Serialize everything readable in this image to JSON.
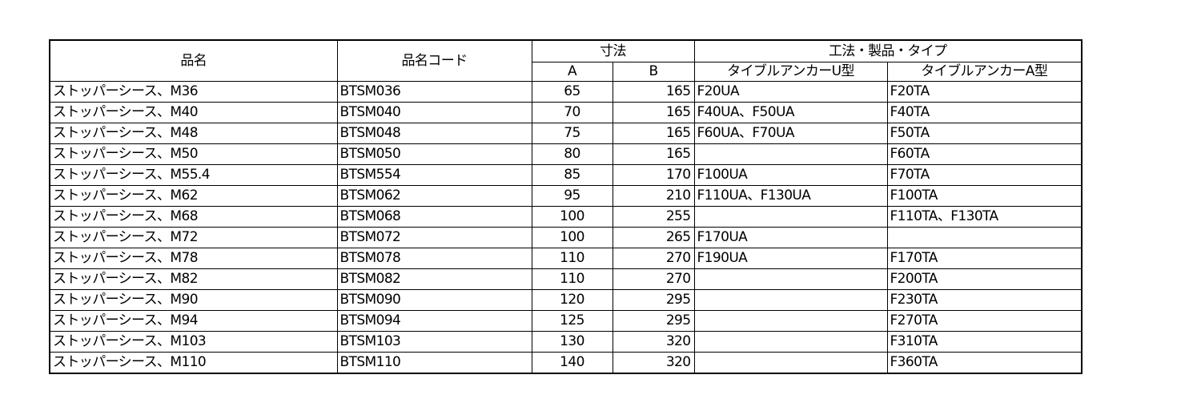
{
  "headers": {
    "name": "品名",
    "code": "品名コード",
    "dimensions": "寸法",
    "dim_a": "A",
    "dim_b": "B",
    "method": "工法・製品・タイプ",
    "u_type": "タイブルアンカーU型",
    "a_type": "タイブルアンカーA型"
  },
  "rows": [
    {
      "name": "ストッパーシース、M36",
      "code": "BTSM036",
      "a": "65",
      "b": "165",
      "u": "F20UA",
      "t": "F20TA"
    },
    {
      "name": "ストッパーシース、M40",
      "code": "BTSM040",
      "a": "70",
      "b": "165",
      "u": "F40UA、F50UA",
      "t": "F40TA"
    },
    {
      "name": "ストッパーシース、M48",
      "code": "BTSM048",
      "a": "75",
      "b": "165",
      "u": "F60UA、F70UA",
      "t": "F50TA"
    },
    {
      "name": "ストッパーシース、M50",
      "code": "BTSM050",
      "a": "80",
      "b": "165",
      "u": "",
      "t": "F60TA"
    },
    {
      "name": "ストッパーシース、M55.4",
      "code": "BTSM554",
      "a": "85",
      "b": "170",
      "u": "F100UA",
      "t": "F70TA"
    },
    {
      "name": "ストッパーシース、M62",
      "code": "BTSM062",
      "a": "95",
      "b": "210",
      "u": "F110UA、F130UA",
      "t": "F100TA"
    },
    {
      "name": "ストッパーシース、M68",
      "code": "BTSM068",
      "a": "100",
      "b": "255",
      "u": "",
      "t": "F110TA、F130TA"
    },
    {
      "name": "ストッパーシース、M72",
      "code": "BTSM072",
      "a": "100",
      "b": "265",
      "u": "F170UA",
      "t": ""
    },
    {
      "name": "ストッパーシース、M78",
      "code": "BTSM078",
      "a": "110",
      "b": "270",
      "u": "F190UA",
      "t": "F170TA"
    },
    {
      "name": "ストッパーシース、M82",
      "code": "BTSM082",
      "a": "110",
      "b": "270",
      "u": "",
      "t": "F200TA"
    },
    {
      "name": "ストッパーシース、M90",
      "code": "BTSM090",
      "a": "120",
      "b": "295",
      "u": "",
      "t": "F230TA"
    },
    {
      "name": "ストッパーシース、M94",
      "code": "BTSM094",
      "a": "125",
      "b": "295",
      "u": "",
      "t": "F270TA"
    },
    {
      "name": "ストッパーシース、M103",
      "code": "BTSM103",
      "a": "130",
      "b": "320",
      "u": "",
      "t": "F310TA"
    },
    {
      "name": "ストッパーシース、M110",
      "code": "BTSM110",
      "a": "140",
      "b": "320",
      "u": "",
      "t": "F360TA"
    }
  ]
}
